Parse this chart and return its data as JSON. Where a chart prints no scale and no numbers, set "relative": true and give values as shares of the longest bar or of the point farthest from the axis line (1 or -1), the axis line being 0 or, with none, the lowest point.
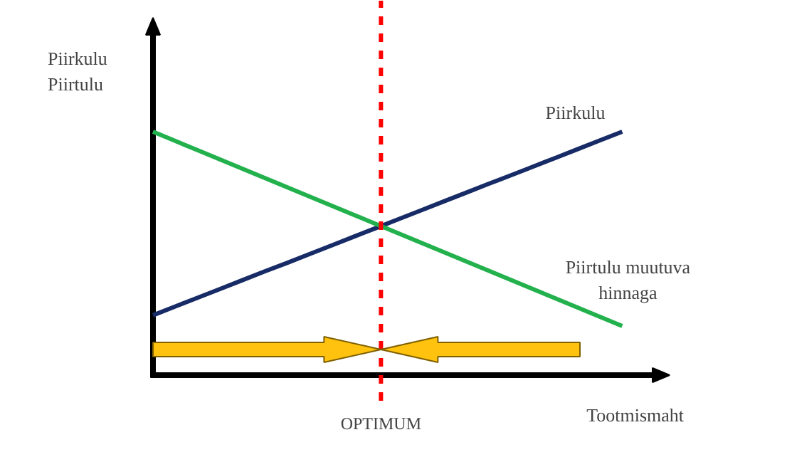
{
  "chart_data": {
    "type": "line",
    "relative": true,
    "ylabel": "Piirkulu\nPiirtulu",
    "xlabel": "Tootmismaht",
    "grid": false,
    "legend": false,
    "marker": "none",
    "line_style": "solid",
    "categories": [
      null,
      null,
      null,
      null,
      null,
      null,
      null,
      null,
      null,
      null,
      null,
      null,
      null,
      null,
      null,
      null,
      null,
      null,
      null,
      null,
      null,
      null
    ],
    "series": [
      {
        "name": "Piirkulu",
        "color": "#172b66",
        "values": [
          0.246,
          0.282,
          0.318,
          0.354,
          0.39,
          0.426,
          0.461,
          0.497,
          0.533,
          0.569,
          0.605,
          0.641,
          0.677,
          0.713,
          0.749,
          0.785,
          0.82,
          0.856,
          0.892,
          0.928,
          0.964,
          1.0
        ]
      },
      {
        "name": "Piirtulu muutuva\nhinnaga",
        "color": "#22b14c",
        "values": [
          1.0,
          0.962,
          0.924,
          0.886,
          0.848,
          0.81,
          0.772,
          0.734,
          0.696,
          0.658,
          0.62,
          0.582,
          0.544,
          0.506,
          0.468,
          0.43,
          0.392,
          0.354,
          0.316,
          0.278,
          0.24,
          0.202
        ]
      }
    ],
    "annotations": [
      "OPTIMUM"
    ]
  }
}
